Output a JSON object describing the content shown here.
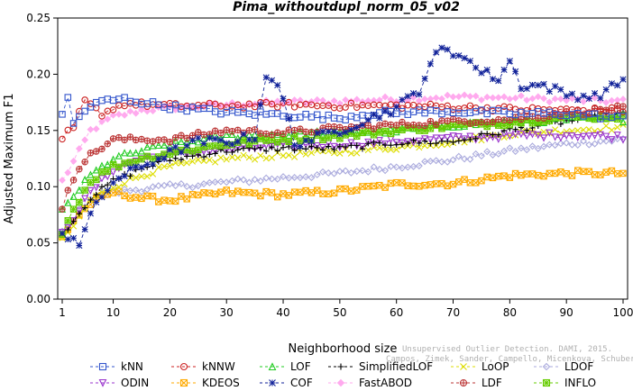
{
  "chart_data": {
    "type": "line",
    "title": "Pima_withoutdupl_norm_05_v02",
    "xlabel": "Neighborhood size",
    "ylabel": "Adjusted Maximum F1",
    "xlim": [
      1,
      100
    ],
    "ylim": [
      0.0,
      0.25
    ],
    "x_ticks": [
      "1",
      "10",
      "20",
      "30",
      "40",
      "50",
      "60",
      "70",
      "80",
      "90",
      "100"
    ],
    "y_ticks": [
      "0.00",
      "0.05",
      "0.10",
      "0.15",
      "0.20",
      "0.25"
    ],
    "grid": false,
    "legend_position": "bottom",
    "credit": [
      "Unsupervised Outlier Detection. DAMI, 2015.",
      "Campos, Zimek, Sander, Campello, Micenkova, Schubert, Assent, Houle"
    ],
    "series": [
      {
        "name": "kNN",
        "color": "#3355cc",
        "marker": "square",
        "dash": "4,3",
        "anchors": [
          [
            1,
            0.165
          ],
          [
            2,
            0.178
          ],
          [
            3,
            0.156
          ],
          [
            5,
            0.168
          ],
          [
            8,
            0.176
          ],
          [
            12,
            0.178
          ],
          [
            20,
            0.171
          ],
          [
            30,
            0.166
          ],
          [
            40,
            0.164
          ],
          [
            50,
            0.161
          ],
          [
            55,
            0.165
          ],
          [
            60,
            0.166
          ],
          [
            70,
            0.167
          ],
          [
            80,
            0.165
          ],
          [
            90,
            0.165
          ],
          [
            100,
            0.161
          ]
        ]
      },
      {
        "name": "kNNW",
        "color": "#cc2222",
        "marker": "circle",
        "dash": "4,3",
        "anchors": [
          [
            1,
            0.14
          ],
          [
            2,
            0.148
          ],
          [
            3,
            0.152
          ],
          [
            4,
            0.165
          ],
          [
            5,
            0.176
          ],
          [
            8,
            0.165
          ],
          [
            12,
            0.174
          ],
          [
            20,
            0.172
          ],
          [
            30,
            0.172
          ],
          [
            40,
            0.173
          ],
          [
            50,
            0.172
          ],
          [
            60,
            0.172
          ],
          [
            70,
            0.171
          ],
          [
            80,
            0.169
          ],
          [
            90,
            0.168
          ],
          [
            100,
            0.168
          ]
        ]
      },
      {
        "name": "LOF",
        "color": "#22cc22",
        "marker": "triangle",
        "dash": "4,3",
        "anchors": [
          [
            1,
            0.078
          ],
          [
            3,
            0.092
          ],
          [
            6,
            0.11
          ],
          [
            10,
            0.125
          ],
          [
            15,
            0.132
          ],
          [
            20,
            0.138
          ],
          [
            30,
            0.145
          ],
          [
            40,
            0.147
          ],
          [
            50,
            0.148
          ],
          [
            60,
            0.15
          ],
          [
            70,
            0.155
          ],
          [
            80,
            0.158
          ],
          [
            90,
            0.16
          ],
          [
            100,
            0.16
          ]
        ]
      },
      {
        "name": "SimplifiedLOF",
        "color": "#000000",
        "marker": "plus",
        "dash": "4,3",
        "anchors": [
          [
            1,
            0.058
          ],
          [
            3,
            0.07
          ],
          [
            6,
            0.09
          ],
          [
            10,
            0.105
          ],
          [
            15,
            0.116
          ],
          [
            20,
            0.124
          ],
          [
            30,
            0.132
          ],
          [
            40,
            0.134
          ],
          [
            50,
            0.134
          ],
          [
            60,
            0.139
          ],
          [
            70,
            0.14
          ],
          [
            80,
            0.15
          ],
          [
            90,
            0.158
          ],
          [
            100,
            0.165
          ]
        ]
      },
      {
        "name": "LoOP",
        "color": "#dddd00",
        "marker": "x",
        "dash": "4,3",
        "anchors": [
          [
            1,
            0.052
          ],
          [
            3,
            0.065
          ],
          [
            6,
            0.088
          ],
          [
            10,
            0.1
          ],
          [
            15,
            0.11
          ],
          [
            20,
            0.118
          ],
          [
            30,
            0.125
          ],
          [
            40,
            0.128
          ],
          [
            50,
            0.131
          ],
          [
            60,
            0.135
          ],
          [
            70,
            0.14
          ],
          [
            80,
            0.147
          ],
          [
            90,
            0.15
          ],
          [
            100,
            0.153
          ]
        ]
      },
      {
        "name": "LDOF",
        "color": "#aaaadd",
        "marker": "diamond",
        "dash": "4,3",
        "anchors": [
          [
            1,
            0.06
          ],
          [
            3,
            0.072
          ],
          [
            6,
            0.09
          ],
          [
            10,
            0.095
          ],
          [
            15,
            0.098
          ],
          [
            20,
            0.1
          ],
          [
            30,
            0.104
          ],
          [
            40,
            0.108
          ],
          [
            50,
            0.112
          ],
          [
            60,
            0.118
          ],
          [
            70,
            0.124
          ],
          [
            80,
            0.132
          ],
          [
            90,
            0.138
          ],
          [
            100,
            0.142
          ]
        ]
      },
      {
        "name": "ODIN",
        "color": "#9933cc",
        "marker": "triangle-down",
        "dash": "4,3",
        "anchors": [
          [
            1,
            0.058
          ],
          [
            3,
            0.072
          ],
          [
            6,
            0.095
          ],
          [
            10,
            0.115
          ],
          [
            15,
            0.125
          ],
          [
            20,
            0.128
          ],
          [
            30,
            0.133
          ],
          [
            40,
            0.136
          ],
          [
            50,
            0.137
          ],
          [
            60,
            0.14
          ],
          [
            70,
            0.143
          ],
          [
            80,
            0.145
          ],
          [
            90,
            0.146
          ],
          [
            100,
            0.144
          ]
        ]
      },
      {
        "name": "KDEOS",
        "color": "#ffaa00",
        "marker": "box-x",
        "dash": "4,3",
        "anchors": [
          [
            1,
            0.055
          ],
          [
            3,
            0.07
          ],
          [
            6,
            0.085
          ],
          [
            10,
            0.095
          ],
          [
            15,
            0.09
          ],
          [
            20,
            0.088
          ],
          [
            30,
            0.095
          ],
          [
            40,
            0.093
          ],
          [
            50,
            0.096
          ],
          [
            60,
            0.102
          ],
          [
            70,
            0.103
          ],
          [
            80,
            0.11
          ],
          [
            90,
            0.112
          ],
          [
            100,
            0.112
          ]
        ]
      },
      {
        "name": "COF",
        "color": "#112299",
        "marker": "star",
        "dash": "4,3",
        "anchors": [
          [
            1,
            0.058
          ],
          [
            3,
            0.055
          ],
          [
            4,
            0.05
          ],
          [
            6,
            0.075
          ],
          [
            10,
            0.105
          ],
          [
            15,
            0.118
          ],
          [
            20,
            0.13
          ],
          [
            25,
            0.14
          ],
          [
            30,
            0.14
          ],
          [
            35,
            0.145
          ],
          [
            37,
            0.2
          ],
          [
            38,
            0.196
          ],
          [
            40,
            0.178
          ],
          [
            42,
            0.138
          ],
          [
            50,
            0.15
          ],
          [
            60,
            0.17
          ],
          [
            64,
            0.186
          ],
          [
            66,
            0.21
          ],
          [
            68,
            0.222
          ],
          [
            70,
            0.218
          ],
          [
            72,
            0.218
          ],
          [
            74,
            0.205
          ],
          [
            78,
            0.196
          ],
          [
            80,
            0.212
          ],
          [
            82,
            0.19
          ],
          [
            86,
            0.19
          ],
          [
            90,
            0.182
          ],
          [
            95,
            0.18
          ],
          [
            98,
            0.188
          ],
          [
            100,
            0.196
          ]
        ]
      },
      {
        "name": "FastABOD",
        "color": "#ffaaee",
        "marker": "diamond-fill",
        "dash": "4,3",
        "anchors": [
          [
            1,
            0.105
          ],
          [
            3,
            0.122
          ],
          [
            6,
            0.15
          ],
          [
            10,
            0.162
          ],
          [
            15,
            0.168
          ],
          [
            20,
            0.17
          ],
          [
            30,
            0.173
          ],
          [
            40,
            0.175
          ],
          [
            50,
            0.176
          ],
          [
            60,
            0.178
          ],
          [
            70,
            0.18
          ],
          [
            80,
            0.179
          ],
          [
            90,
            0.177
          ],
          [
            100,
            0.176
          ]
        ]
      },
      {
        "name": "LDF",
        "color": "#bb3333",
        "marker": "circle-plus",
        "dash": "4,3",
        "anchors": [
          [
            1,
            0.078
          ],
          [
            2,
            0.098
          ],
          [
            4,
            0.118
          ],
          [
            6,
            0.128
          ],
          [
            10,
            0.142
          ],
          [
            20,
            0.142
          ],
          [
            30,
            0.15
          ],
          [
            40,
            0.148
          ],
          [
            50,
            0.152
          ],
          [
            60,
            0.155
          ],
          [
            70,
            0.158
          ],
          [
            80,
            0.16
          ],
          [
            90,
            0.165
          ],
          [
            100,
            0.17
          ]
        ]
      },
      {
        "name": "INFLO",
        "color": "#66cc00",
        "marker": "box-star",
        "dash": "4,3",
        "anchors": [
          [
            1,
            0.06
          ],
          [
            3,
            0.08
          ],
          [
            6,
            0.105
          ],
          [
            10,
            0.118
          ],
          [
            15,
            0.125
          ],
          [
            20,
            0.13
          ],
          [
            30,
            0.138
          ],
          [
            40,
            0.142
          ],
          [
            50,
            0.145
          ],
          [
            60,
            0.15
          ],
          [
            70,
            0.154
          ],
          [
            80,
            0.157
          ],
          [
            90,
            0.162
          ],
          [
            100,
            0.162
          ]
        ]
      }
    ]
  }
}
